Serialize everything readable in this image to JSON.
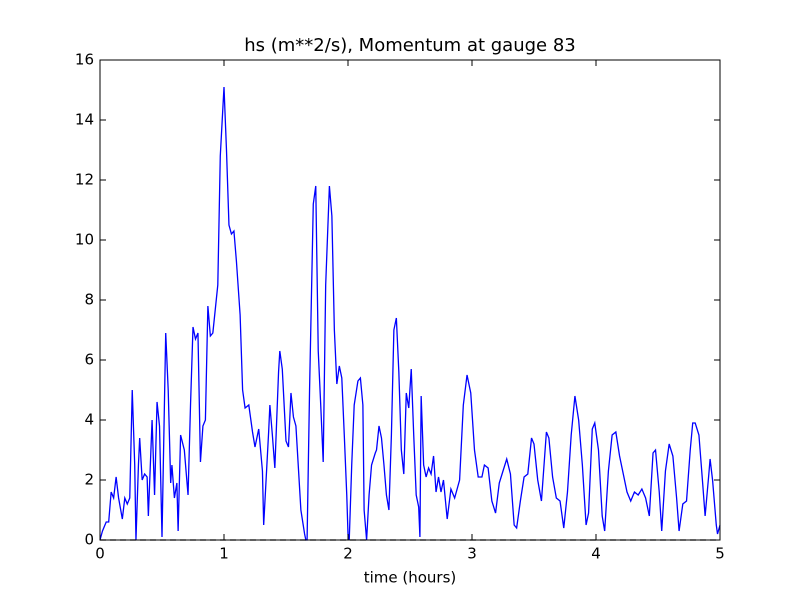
{
  "chart_data": {
    "type": "line",
    "title": "hs (m**2/s), Momentum at gauge 83",
    "xlabel": "time (hours)",
    "xlim": [
      0,
      5
    ],
    "xticks": [
      0,
      1,
      2,
      3,
      4,
      5
    ],
    "ylim": [
      0,
      16
    ],
    "yticks": [
      0,
      2,
      4,
      6,
      8,
      10,
      12,
      14,
      16
    ],
    "series": [
      {
        "color": "#0000ff",
        "x": [
          0,
          0.02,
          0.05,
          0.07,
          0.09,
          0.11,
          0.13,
          0.15,
          0.18,
          0.2,
          0.22,
          0.24,
          0.26,
          0.28,
          0.29,
          0.31,
          0.32,
          0.34,
          0.36,
          0.38,
          0.39,
          0.42,
          0.44,
          0.46,
          0.48,
          0.5,
          0.53,
          0.55,
          0.57,
          0.58,
          0.6,
          0.62,
          0.63,
          0.65,
          0.68,
          0.71,
          0.73,
          0.75,
          0.77,
          0.79,
          0.81,
          0.83,
          0.85,
          0.87,
          0.89,
          0.91,
          0.93,
          0.95,
          0.97,
          1.0,
          1.02,
          1.04,
          1.06,
          1.08,
          1.1,
          1.13,
          1.15,
          1.17,
          1.2,
          1.23,
          1.25,
          1.28,
          1.31,
          1.32,
          1.36,
          1.37,
          1.39,
          1.41,
          1.44,
          1.45,
          1.47,
          1.5,
          1.52,
          1.54,
          1.56,
          1.58,
          1.6,
          1.62,
          1.65,
          1.66,
          1.67,
          1.69,
          1.72,
          1.74,
          1.76,
          1.78,
          1.8,
          1.82,
          1.85,
          1.87,
          1.89,
          1.91,
          1.93,
          1.95,
          1.97,
          1.99,
          2.0,
          2.01,
          2.03,
          2.05,
          2.08,
          2.1,
          2.12,
          2.13,
          2.15,
          2.17,
          2.19,
          2.22,
          2.23,
          2.25,
          2.27,
          2.29,
          2.31,
          2.33,
          2.35,
          2.37,
          2.39,
          2.41,
          2.43,
          2.45,
          2.47,
          2.49,
          2.51,
          2.53,
          2.55,
          2.57,
          2.58,
          2.59,
          2.61,
          2.63,
          2.65,
          2.67,
          2.69,
          2.71,
          2.73,
          2.75,
          2.77,
          2.8,
          2.83,
          2.86,
          2.9,
          2.93,
          2.96,
          2.99,
          3.02,
          3.05,
          3.08,
          3.1,
          3.13,
          3.16,
          3.19,
          3.22,
          3.25,
          3.28,
          3.31,
          3.34,
          3.36,
          3.39,
          3.42,
          3.45,
          3.48,
          3.5,
          3.53,
          3.56,
          3.6,
          3.62,
          3.65,
          3.68,
          3.71,
          3.74,
          3.77,
          3.8,
          3.83,
          3.86,
          3.89,
          3.92,
          3.94,
          3.97,
          3.99,
          4.02,
          4.05,
          4.07,
          4.1,
          4.13,
          4.16,
          4.19,
          4.22,
          4.25,
          4.28,
          4.31,
          4.34,
          4.37,
          4.4,
          4.43,
          4.46,
          4.48,
          4.51,
          4.53,
          4.56,
          4.59,
          4.62,
          4.65,
          4.67,
          4.7,
          4.73,
          4.76,
          4.78,
          4.8,
          4.83,
          4.86,
          4.88,
          4.91,
          4.92,
          4.94,
          4.97,
          4.98,
          5.0
        ],
        "values": [
          0,
          0.3,
          0.6,
          0.6,
          1.6,
          1.4,
          2.1,
          1.4,
          0.7,
          1.4,
          1.2,
          1.4,
          5.0,
          2.5,
          0,
          2.5,
          3.4,
          2.0,
          2.2,
          2.1,
          0.8,
          4.0,
          1.5,
          4.6,
          3.8,
          0.1,
          6.9,
          5.0,
          1.9,
          2.5,
          1.4,
          1.9,
          0.3,
          3.5,
          3.0,
          1.5,
          4.5,
          7.1,
          6.7,
          6.9,
          2.6,
          3.8,
          4.0,
          7.8,
          6.8,
          6.9,
          7.7,
          8.5,
          12.8,
          15.1,
          13,
          10.5,
          10.2,
          10.3,
          9.3,
          7.5,
          5.0,
          4.4,
          4.5,
          3.6,
          3.1,
          3.7,
          2.3,
          0.5,
          3.6,
          4.5,
          3.5,
          2.4,
          5.6,
          6.3,
          5.7,
          3.3,
          3.1,
          4.9,
          4.1,
          3.8,
          2.4,
          1.0,
          0.2,
          0,
          0,
          5.0,
          11.2,
          11.8,
          6.3,
          4.5,
          2.6,
          8.5,
          11.8,
          10.8,
          7.0,
          5.2,
          5.8,
          5.4,
          3.5,
          1.5,
          0.2,
          0,
          2.5,
          4.5,
          5.3,
          5.4,
          4.5,
          1.0,
          0,
          1.5,
          2.5,
          2.9,
          3.0,
          3.8,
          3.4,
          2.5,
          1.5,
          1.0,
          3.5,
          7.0,
          7.4,
          5.6,
          3.0,
          2.2,
          4.9,
          4.4,
          5.7,
          3.5,
          1.5,
          1.1,
          0.1,
          4.8,
          2.5,
          2.1,
          2.4,
          2.2,
          2.8,
          1.6,
          2.1,
          1.6,
          2.0,
          0.7,
          1.7,
          1.4,
          2.0,
          4.5,
          5.5,
          4.9,
          3.0,
          2.1,
          2.1,
          2.5,
          2.4,
          1.3,
          0.9,
          1.9,
          2.3,
          2.7,
          2.2,
          0.5,
          0.4,
          1.3,
          2.1,
          2.2,
          3.4,
          3.2,
          2.0,
          1.3,
          3.6,
          3.4,
          2.1,
          1.4,
          1.3,
          0.4,
          1.6,
          3.5,
          4.8,
          4.0,
          2.5,
          0.5,
          0.9,
          3.7,
          3.9,
          3.0,
          0.8,
          0.3,
          2.3,
          3.5,
          3.6,
          2.8,
          2.2,
          1.6,
          1.3,
          1.6,
          1.5,
          1.7,
          1.4,
          0.8,
          2.9,
          3.0,
          1.6,
          0.3,
          2.3,
          3.2,
          2.8,
          1.4,
          0.3,
          1.2,
          1.3,
          3.0,
          3.9,
          3.9,
          3.5,
          1.9,
          0.8,
          2.2,
          2.7,
          2.0,
          0.5,
          0.2,
          0.5
        ]
      },
      {
        "color": "#000000",
        "dashed": true,
        "x": [
          0,
          5
        ],
        "values": [
          0,
          0
        ]
      }
    ]
  }
}
